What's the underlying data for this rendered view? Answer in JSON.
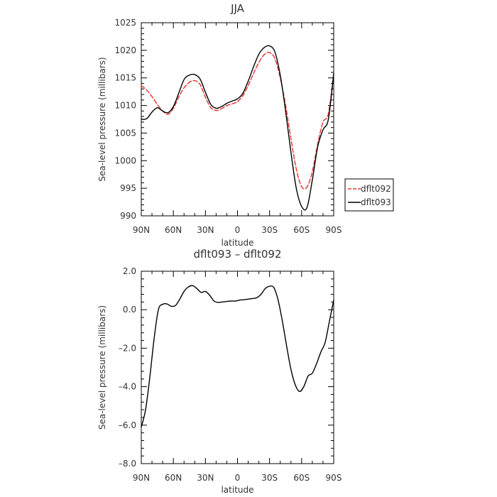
{
  "chart_data": [
    {
      "type": "line",
      "title": "JJA",
      "xlabel": "latitude",
      "ylabel": "Sea-level pressure (millibars)",
      "xlim": [
        90,
        -90
      ],
      "ylim": [
        990,
        1025
      ],
      "xtick_values": [
        90,
        60,
        30,
        0,
        -30,
        -60,
        -90
      ],
      "xtick_labels": [
        "90N",
        "60N",
        "30N",
        "0",
        "30S",
        "60S",
        "90S"
      ],
      "ytick_values": [
        990,
        995,
        1000,
        1005,
        1010,
        1015,
        1020,
        1025
      ],
      "ytick_labels": [
        "990",
        "995",
        "1000",
        "1005",
        "1010",
        "1015",
        "1020",
        "1025"
      ],
      "legend_position": "right",
      "series": [
        {
          "name": "dflt092",
          "color": "#e8302a",
          "style": "dashed",
          "x": [
            90,
            85,
            80,
            75,
            70,
            65,
            60,
            55,
            50,
            45,
            40,
            35,
            30,
            25,
            20,
            15,
            10,
            5,
            0,
            -5,
            -10,
            -15,
            -20,
            -25,
            -30,
            -35,
            -40,
            -45,
            -50,
            -55,
            -60,
            -65,
            -70,
            -75,
            -80,
            -85,
            -90
          ],
          "values": [
            1013.6,
            1012.8,
            1011.6,
            1010.2,
            1009.0,
            1008.4,
            1009.5,
            1011.5,
            1013.2,
            1014.2,
            1014.5,
            1013.8,
            1011.5,
            1009.6,
            1009.1,
            1009.4,
            1010.0,
            1010.3,
            1010.7,
            1011.8,
            1013.6,
            1015.8,
            1017.8,
            1019.2,
            1019.6,
            1018.5,
            1015.0,
            1010.0,
            1004.0,
            998.5,
            995.3,
            995.2,
            998.0,
            1003.0,
            1007.0,
            1008.5,
            1015.8
          ]
        },
        {
          "name": "dflt093",
          "color": "#000000",
          "style": "solid",
          "x": [
            90,
            85,
            80,
            75,
            70,
            65,
            60,
            55,
            50,
            45,
            40,
            35,
            30,
            25,
            20,
            15,
            10,
            5,
            0,
            -5,
            -10,
            -15,
            -20,
            -25,
            -30,
            -35,
            -40,
            -45,
            -50,
            -55,
            -60,
            -65,
            -70,
            -75,
            -80,
            -85,
            -90
          ],
          "values": [
            1007.5,
            1007.6,
            1008.8,
            1009.6,
            1009.0,
            1008.7,
            1009.8,
            1012.2,
            1014.7,
            1015.5,
            1015.6,
            1014.8,
            1012.4,
            1010.2,
            1009.5,
            1009.8,
            1010.4,
            1010.8,
            1011.2,
            1012.2,
            1014.4,
            1017.0,
            1019.3,
            1020.5,
            1020.8,
            1019.7,
            1015.5,
            1009.0,
            1001.5,
            995.0,
            991.7,
            991.5,
            996.5,
            1002.5,
            1005.6,
            1007.5,
            1015.8
          ]
        }
      ]
    },
    {
      "type": "line",
      "title": "dflt093 – dflt092",
      "xlabel": "latitude",
      "ylabel": "Sea-level pressure (millibars)",
      "xlim": [
        90,
        -90
      ],
      "ylim": [
        -8,
        2
      ],
      "xtick_values": [
        90,
        60,
        30,
        0,
        -30,
        -60,
        -90
      ],
      "xtick_labels": [
        "90N",
        "60N",
        "30N",
        "0",
        "30S",
        "60S",
        "90S"
      ],
      "ytick_values": [
        -8,
        -6,
        -4,
        -2,
        0,
        2
      ],
      "ytick_labels": [
        "–8.0",
        "–6.0",
        "–4.0",
        "–2.0",
        "0.0",
        "2.0"
      ],
      "series": [
        {
          "color": "#000000",
          "style": "solid",
          "x": [
            90,
            86,
            82,
            78,
            74,
            70,
            66,
            62,
            58,
            54,
            50,
            46,
            42,
            38,
            34,
            30,
            26,
            22,
            18,
            14,
            10,
            6,
            2,
            -2,
            -6,
            -10,
            -14,
            -18,
            -22,
            -26,
            -30,
            -34,
            -38,
            -42,
            -46,
            -50,
            -54,
            -58,
            -62,
            -66,
            -70,
            -74,
            -78,
            -82,
            -86,
            -90
          ],
          "values": [
            -6.1,
            -5.2,
            -3.5,
            -1.5,
            0.0,
            0.28,
            0.3,
            0.18,
            0.22,
            0.55,
            0.95,
            1.18,
            1.25,
            1.1,
            0.9,
            0.95,
            0.75,
            0.45,
            0.38,
            0.4,
            0.43,
            0.45,
            0.45,
            0.5,
            0.52,
            0.55,
            0.58,
            0.62,
            0.8,
            1.1,
            1.22,
            1.15,
            0.5,
            -0.6,
            -1.9,
            -3.1,
            -3.9,
            -4.25,
            -4.0,
            -3.45,
            -3.3,
            -2.8,
            -2.2,
            -1.7,
            -0.6,
            0.5
          ]
        }
      ]
    }
  ]
}
